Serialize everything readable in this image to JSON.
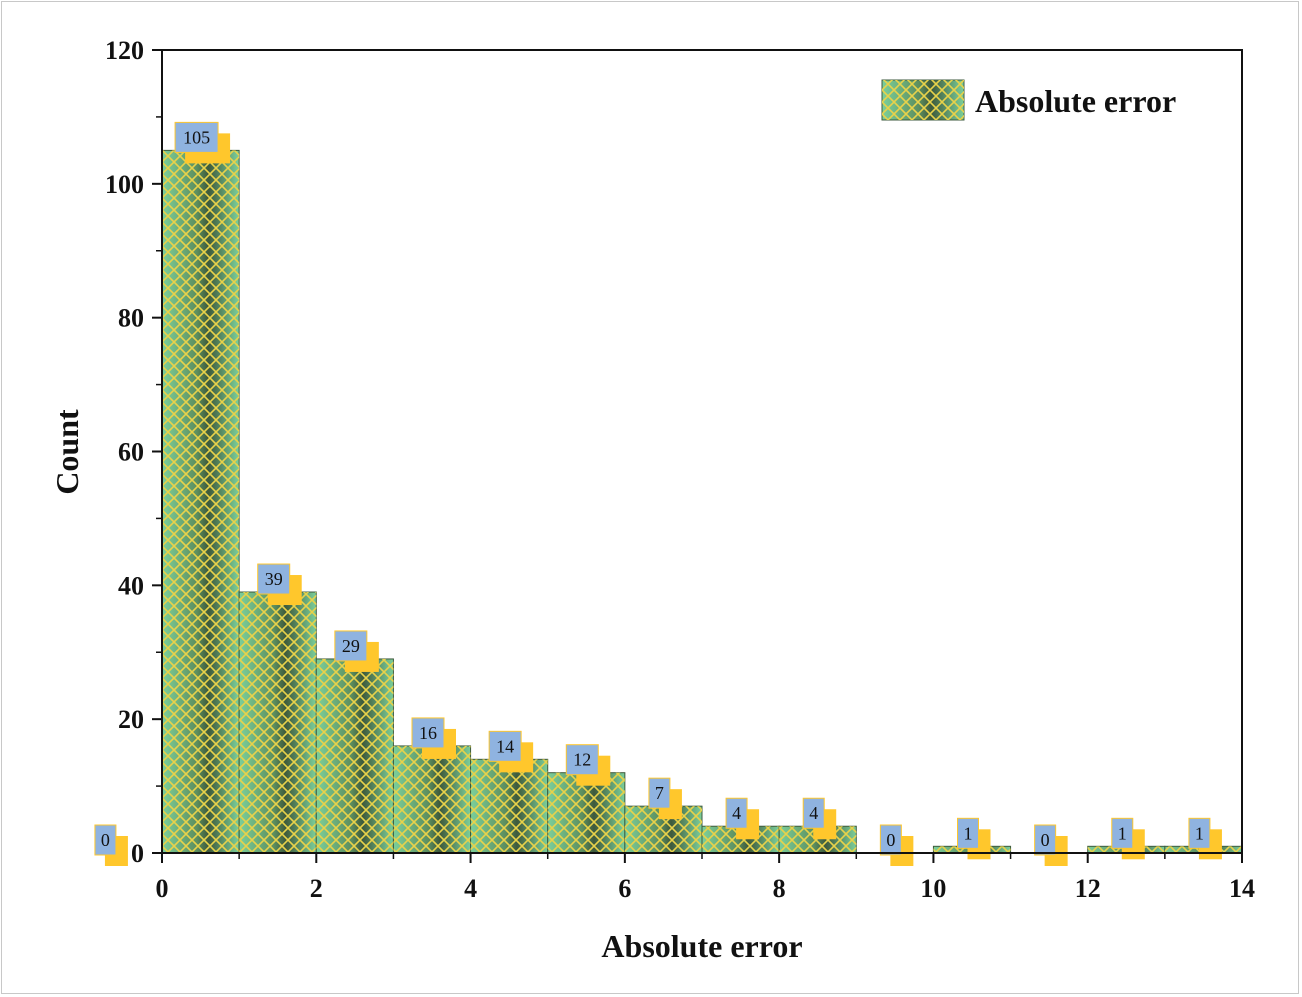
{
  "chart_data": {
    "type": "bar",
    "xlabel": "Absolute error",
    "ylabel": "Count",
    "xlim": [
      0,
      14
    ],
    "ylim": [
      0,
      120
    ],
    "xticks": [
      0,
      2,
      4,
      6,
      8,
      10,
      12,
      14
    ],
    "yticks": [
      0,
      20,
      40,
      60,
      80,
      100,
      120
    ],
    "bin_width": 1,
    "bins": [
      {
        "start": 0,
        "end": 1,
        "value": 105,
        "label": "105"
      },
      {
        "start": 1,
        "end": 2,
        "value": 39,
        "label": "39"
      },
      {
        "start": 2,
        "end": 3,
        "value": 29,
        "label": "29"
      },
      {
        "start": 3,
        "end": 4,
        "value": 16,
        "label": "16"
      },
      {
        "start": 4,
        "end": 5,
        "value": 14,
        "label": "14"
      },
      {
        "start": 5,
        "end": 6,
        "value": 12,
        "label": "12"
      },
      {
        "start": 6,
        "end": 7,
        "value": 7,
        "label": "7"
      },
      {
        "start": 7,
        "end": 8,
        "value": 4,
        "label": "4"
      },
      {
        "start": 8,
        "end": 9,
        "value": 4,
        "label": "4"
      },
      {
        "start": 9,
        "end": 10,
        "value": 0,
        "label": "0"
      },
      {
        "start": 10,
        "end": 11,
        "value": 1,
        "label": "1"
      },
      {
        "start": 11,
        "end": 12,
        "value": 0,
        "label": "0"
      },
      {
        "start": 12,
        "end": 13,
        "value": 1,
        "label": "1"
      },
      {
        "start": 13,
        "end": 14,
        "value": 1,
        "label": "1"
      }
    ],
    "extra_labels": [
      {
        "x": -0.5,
        "value": 0,
        "label": "0"
      }
    ],
    "legend": {
      "label": "Absolute error",
      "position": "top-right"
    },
    "colors": {
      "bar_fill": "#7ccf9a",
      "bar_dark": "#3e5a3c",
      "hatch": "#e8d24a",
      "label_box": "#8fb3e0",
      "label_shadow": "#ffc72c",
      "axis": "#111111"
    }
  }
}
